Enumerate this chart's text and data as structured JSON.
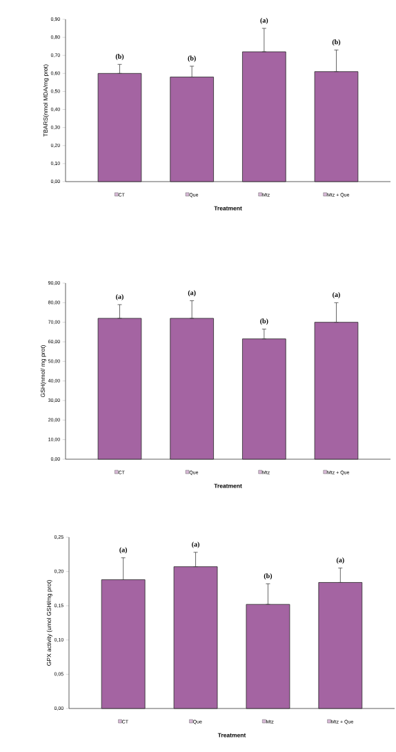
{
  "chart_data": [
    {
      "type": "bar",
      "ylabel": "TBARS(nmol MDA/mg prot)",
      "xlabel": "Treatment",
      "categories": [
        "CT",
        "Que",
        "Mtz",
        "Mtz + Que"
      ],
      "values": [
        0.6,
        0.58,
        0.72,
        0.61
      ],
      "errors": [
        [
          0.6,
          0.65
        ],
        [
          0.58,
          0.64
        ],
        [
          0.72,
          0.85
        ],
        [
          0.61,
          0.73
        ]
      ],
      "color": "#a464a2",
      "ylim": [
        0,
        0.9
      ],
      "yticks": [
        {
          "value": 0,
          "label": "0,00"
        },
        {
          "value": 0.1,
          "label": "0,10"
        },
        {
          "value": 0.2,
          "label": "0,20"
        },
        {
          "value": 0.3,
          "label": "0,30"
        },
        {
          "value": 0.4,
          "label": "0,40"
        },
        {
          "value": 0.5,
          "label": "0,50"
        },
        {
          "value": 0.6,
          "label": "0,60"
        },
        {
          "value": 0.7,
          "label": "0,70"
        },
        {
          "value": 0.8,
          "label": "0,80"
        },
        {
          "value": 0.9,
          "label": "0,90"
        }
      ],
      "annotations": [
        "(b)",
        "(b)",
        "(a)",
        "(b)"
      ]
    },
    {
      "type": "bar",
      "ylabel": "GSH(nmol/ mg prot)",
      "xlabel": "Treatment",
      "categories": [
        "CT",
        "Que",
        "Mtz",
        "Mtz + Que"
      ],
      "values": [
        72,
        72,
        61.5,
        70
      ],
      "errors": [
        [
          72,
          79
        ],
        [
          72,
          81
        ],
        [
          61.5,
          66.5
        ],
        [
          70,
          80
        ]
      ],
      "color": "#a464a2",
      "ylim": [
        0,
        90
      ],
      "yticks": [
        {
          "value": 0,
          "label": "0,00"
        },
        {
          "value": 10,
          "label": "10,00"
        },
        {
          "value": 20,
          "label": "20,00"
        },
        {
          "value": 30,
          "label": "30,00"
        },
        {
          "value": 40,
          "label": "40,00"
        },
        {
          "value": 50,
          "label": "50,00"
        },
        {
          "value": 60,
          "label": "60,00"
        },
        {
          "value": 70,
          "label": "70,00"
        },
        {
          "value": 80,
          "label": "80,00"
        },
        {
          "value": 90,
          "label": "90,00"
        }
      ],
      "annotations": [
        "(a)",
        "(a)",
        "(b)",
        "(a)"
      ]
    },
    {
      "type": "bar",
      "ylabel": "GPX activity (umol GSH/mg prot)",
      "xlabel": "Treatment",
      "categories": [
        "CT",
        "Que",
        "Mtz",
        "Mtz + Que"
      ],
      "values": [
        0.188,
        0.207,
        0.152,
        0.184
      ],
      "errors": [
        [
          0.188,
          0.22
        ],
        [
          0.207,
          0.228
        ],
        [
          0.152,
          0.182
        ],
        [
          0.184,
          0.205
        ]
      ],
      "color": "#a464a2",
      "ylim": [
        0,
        0.25
      ],
      "yticks": [
        {
          "value": 0,
          "label": "0,00"
        },
        {
          "value": 0.05,
          "label": "0,05"
        },
        {
          "value": 0.1,
          "label": "0,10"
        },
        {
          "value": 0.15,
          "label": "0,15"
        },
        {
          "value": 0.2,
          "label": "0,20"
        },
        {
          "value": 0.25,
          "label": "0,25"
        }
      ],
      "annotations": [
        "(a)",
        "(a)",
        "(b)",
        "(a)"
      ]
    }
  ]
}
